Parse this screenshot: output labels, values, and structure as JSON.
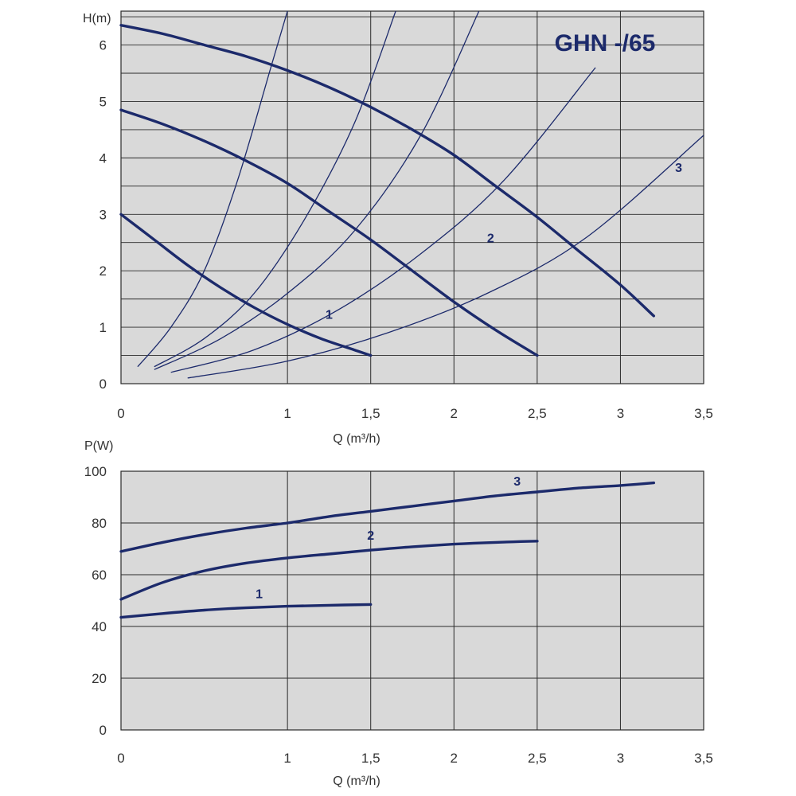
{
  "colors": {
    "background": "#ffffff",
    "plot_area": "#d9d9d9",
    "grid": "#2a2a2a",
    "curves": "#1c2a6b",
    "text": "#333333"
  },
  "chart_data": [
    {
      "type": "line",
      "title": "GHN -/65",
      "xlabel": "Q (m³/h)",
      "ylabel": "H(m)",
      "xlim": [
        0,
        3.5
      ],
      "ylim": [
        0,
        6.6
      ],
      "x_ticks": [
        0,
        1,
        1.5,
        2,
        2.5,
        3,
        3.5
      ],
      "x_tick_labels": [
        "0",
        "1",
        "1,5",
        "2",
        "2,5",
        "3",
        "3,5"
      ],
      "y_ticks": [
        0,
        1,
        2,
        3,
        4,
        5,
        6
      ],
      "y_tick_labels": [
        "0",
        "1",
        "2",
        "3",
        "4",
        "5",
        "6"
      ],
      "grid": true,
      "series": [
        {
          "name": "1",
          "x": [
            0,
            0.2,
            0.4,
            0.6,
            0.8,
            1.0,
            1.2,
            1.4,
            1.5
          ],
          "y": [
            3.0,
            2.55,
            2.1,
            1.7,
            1.35,
            1.05,
            0.8,
            0.6,
            0.5
          ]
        },
        {
          "name": "2",
          "x": [
            0,
            0.25,
            0.5,
            0.75,
            1.0,
            1.25,
            1.5,
            1.75,
            2.0,
            2.25,
            2.5
          ],
          "y": [
            4.85,
            4.6,
            4.3,
            3.95,
            3.55,
            3.05,
            2.55,
            2.0,
            1.45,
            0.95,
            0.5
          ]
        },
        {
          "name": "3",
          "x": [
            0,
            0.25,
            0.5,
            0.75,
            1.0,
            1.25,
            1.5,
            1.75,
            2.0,
            2.25,
            2.5,
            2.75,
            3.0,
            3.2
          ],
          "y": [
            6.35,
            6.2,
            6.0,
            5.8,
            5.55,
            5.25,
            4.9,
            4.5,
            4.05,
            3.5,
            2.95,
            2.35,
            1.75,
            1.2
          ]
        }
      ],
      "system_curves": [
        {
          "x": [
            0.1,
            0.3,
            0.5,
            0.7,
            0.9,
            1.0
          ],
          "y": [
            0.3,
            1.0,
            2.0,
            3.6,
            5.6,
            6.6
          ]
        },
        {
          "x": [
            0.2,
            0.5,
            0.8,
            1.1,
            1.4,
            1.65
          ],
          "y": [
            0.3,
            0.8,
            1.6,
            2.9,
            4.6,
            6.6
          ]
        },
        {
          "x": [
            0.2,
            0.6,
            1.0,
            1.4,
            1.8,
            2.15
          ],
          "y": [
            0.25,
            0.8,
            1.6,
            2.7,
            4.4,
            6.6
          ]
        },
        {
          "x": [
            0.3,
            0.8,
            1.3,
            1.8,
            2.3,
            2.85
          ],
          "y": [
            0.2,
            0.6,
            1.3,
            2.3,
            3.6,
            5.6
          ]
        },
        {
          "x": [
            0.4,
            1.0,
            1.6,
            2.2,
            2.8,
            3.5
          ],
          "y": [
            0.1,
            0.4,
            0.9,
            1.6,
            2.6,
            4.4
          ]
        }
      ],
      "curve_labels": [
        {
          "text": "1",
          "x": 1.25,
          "y": 1.15
        },
        {
          "text": "2",
          "x": 2.22,
          "y": 2.5
        },
        {
          "text": "3",
          "x": 3.35,
          "y": 3.75
        }
      ]
    },
    {
      "type": "line",
      "title": "",
      "xlabel": "Q (m³/h)",
      "ylabel": "P(W)",
      "xlim": [
        0,
        3.5
      ],
      "ylim": [
        0,
        100
      ],
      "x_ticks": [
        0,
        1,
        1.5,
        2,
        2.5,
        3,
        3.5
      ],
      "x_tick_labels": [
        "0",
        "1",
        "1,5",
        "2",
        "2,5",
        "3",
        "3,5"
      ],
      "y_ticks": [
        0,
        20,
        40,
        60,
        80,
        100
      ],
      "y_tick_labels": [
        "0",
        "20",
        "40",
        "60",
        "80",
        "100"
      ],
      "grid": true,
      "series": [
        {
          "name": "1",
          "x": [
            0,
            0.25,
            0.5,
            0.75,
            1.0,
            1.25,
            1.5
          ],
          "y": [
            43.5,
            45,
            46.3,
            47.2,
            47.8,
            48.2,
            48.5
          ]
        },
        {
          "name": "2",
          "x": [
            0,
            0.25,
            0.5,
            0.75,
            1.0,
            1.25,
            1.5,
            1.75,
            2.0,
            2.25,
            2.5
          ],
          "y": [
            50.5,
            57,
            61.5,
            64.5,
            66.5,
            68,
            69.5,
            70.8,
            71.8,
            72.5,
            73
          ]
        },
        {
          "name": "3",
          "x": [
            0,
            0.25,
            0.5,
            0.75,
            1.0,
            1.25,
            1.5,
            1.75,
            2.0,
            2.25,
            2.5,
            2.75,
            3.0,
            3.2
          ],
          "y": [
            69,
            72.5,
            75.5,
            78,
            80,
            82.5,
            84.5,
            86.5,
            88.5,
            90.5,
            92,
            93.5,
            94.5,
            95.5
          ]
        }
      ],
      "curve_labels": [
        {
          "text": "1",
          "x": 0.83,
          "y": 51
        },
        {
          "text": "2",
          "x": 1.5,
          "y": 73.5
        },
        {
          "text": "3",
          "x": 2.38,
          "y": 94.5
        }
      ]
    }
  ]
}
